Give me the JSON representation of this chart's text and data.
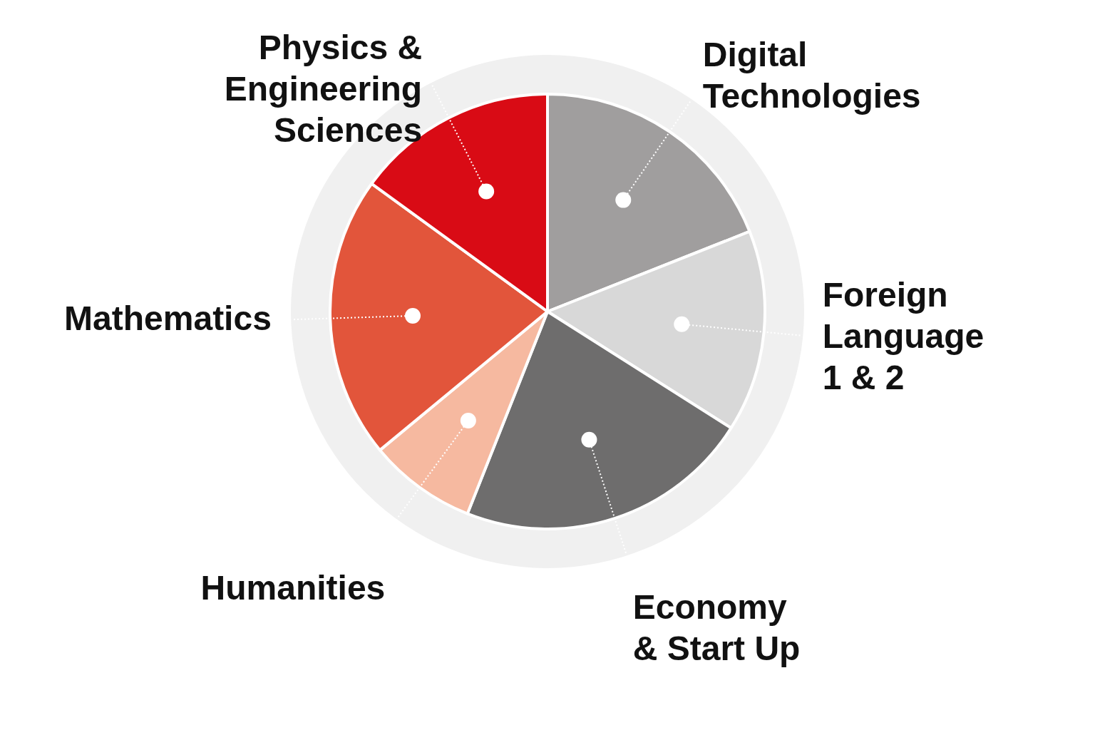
{
  "chart_data": {
    "type": "pie",
    "categories": [
      "Digital Technologies",
      "Foreign Language 1 & 2",
      "Economy & Start Up",
      "Humanities",
      "Mathematics",
      "Physics & Engineering Sciences"
    ],
    "values": [
      19,
      15,
      22,
      8,
      21,
      15
    ],
    "colors": [
      "#a09e9e",
      "#d8d8d8",
      "#6e6d6d",
      "#f6b9a0",
      "#e2553b",
      "#d90b15"
    ],
    "legend": false
  }
}
